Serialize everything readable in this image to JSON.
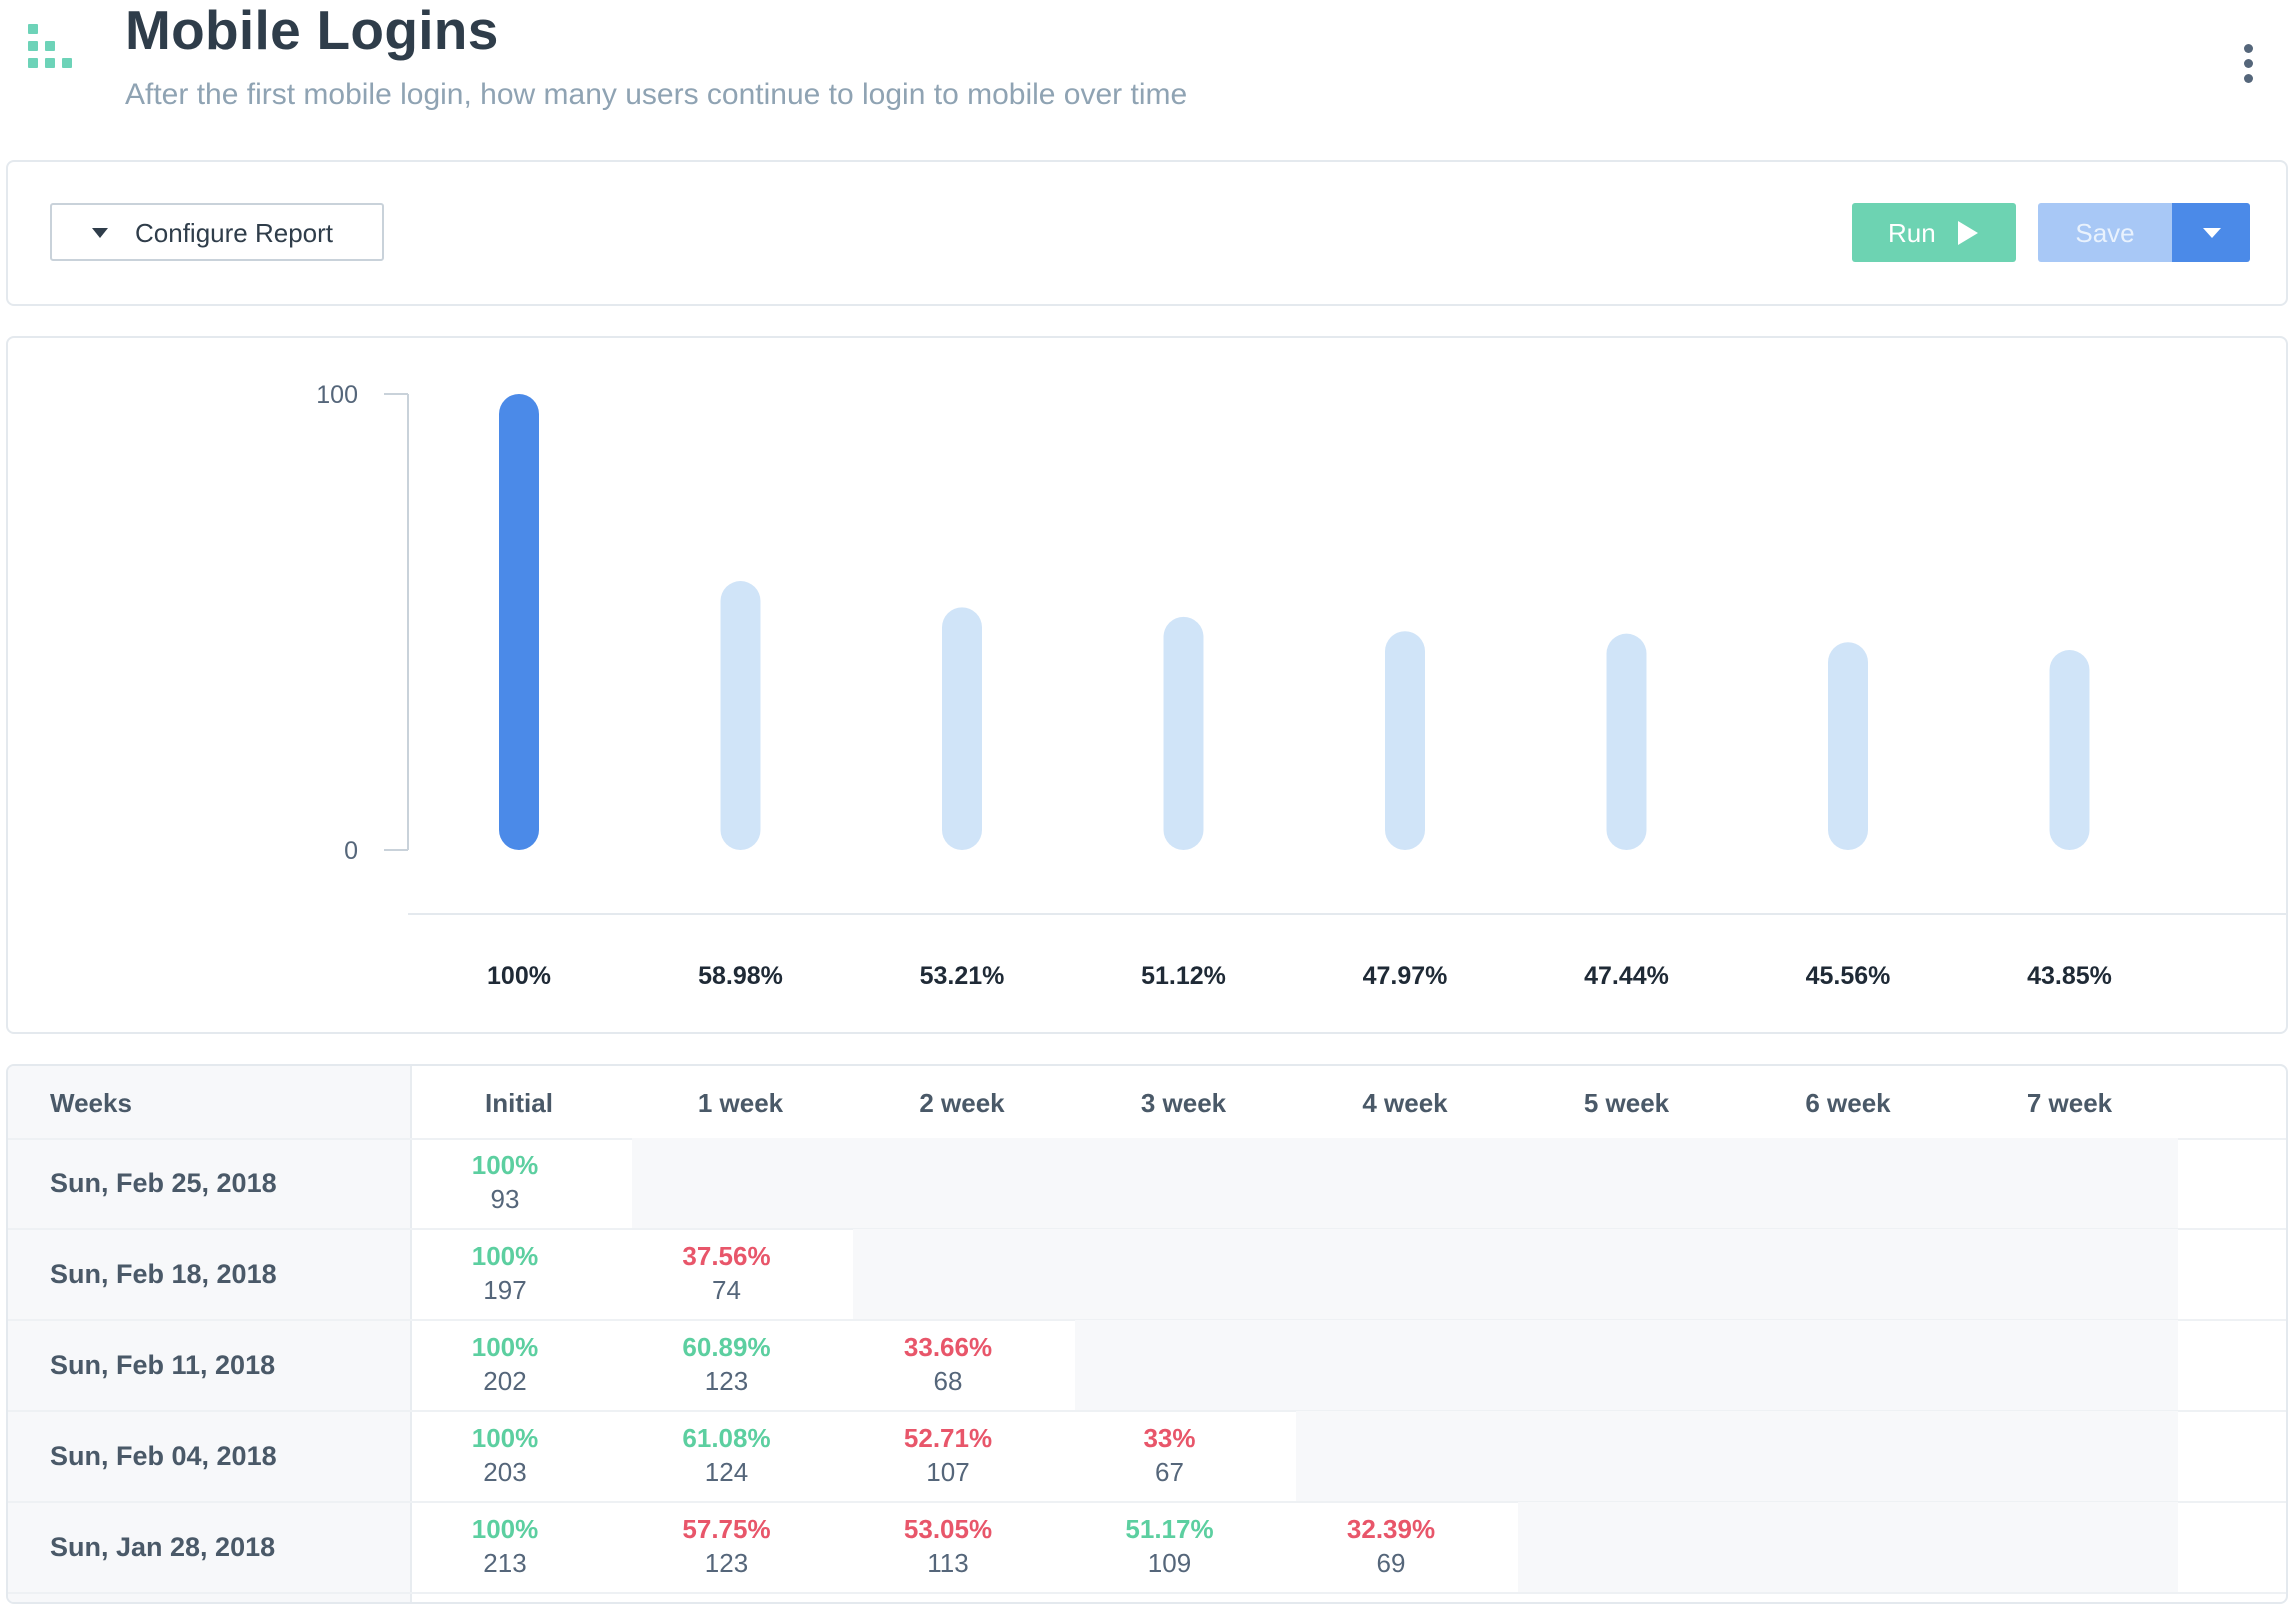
{
  "header": {
    "title": "Mobile Logins",
    "subtitle": "After the first mobile login, how many users continue to login to mobile over time"
  },
  "toolbar": {
    "configure_label": "Configure Report",
    "run_label": "Run",
    "save_label": "Save"
  },
  "colors": {
    "accent_green": "#6dd3b2",
    "primary_blue": "#4b8ae8",
    "bar_initial": "#4b8ae8",
    "bar_rest": "#d0e4f8",
    "positive": "#5ccfa0",
    "negative": "#e8566a"
  },
  "icons": {
    "logo": "dotted-grid-logo-icon",
    "menu": "kebab-menu-icon",
    "configure": "caret-down-icon",
    "run": "play-icon",
    "save_dropdown": "caret-down-icon"
  },
  "chart_data": {
    "type": "bar",
    "categories": [
      "Initial",
      "1 week",
      "2 week",
      "3 week",
      "4 week",
      "5 week",
      "6 week",
      "7 week"
    ],
    "values": [
      100,
      58.98,
      53.21,
      51.12,
      47.97,
      47.44,
      45.56,
      43.85
    ],
    "value_labels": [
      "100%",
      "58.98%",
      "53.21%",
      "51.12%",
      "47.97%",
      "47.44%",
      "45.56%",
      "43.85%"
    ],
    "ylim": [
      0,
      100
    ],
    "y_ticks": [
      "0",
      "100"
    ],
    "title": "",
    "xlabel": "",
    "ylabel": "",
    "grid": false
  },
  "table": {
    "weeks_header": "Weeks",
    "columns": [
      "Initial",
      "1 week",
      "2 week",
      "3 week",
      "4 week",
      "5 week",
      "6 week",
      "7 week"
    ],
    "rows": [
      {
        "label": "Sun, Feb 25, 2018",
        "cells": [
          {
            "pct": "100%",
            "count": "93",
            "tone": "green"
          }
        ]
      },
      {
        "label": "Sun, Feb 18, 2018",
        "cells": [
          {
            "pct": "100%",
            "count": "197",
            "tone": "green"
          },
          {
            "pct": "37.56%",
            "count": "74",
            "tone": "red"
          }
        ]
      },
      {
        "label": "Sun, Feb 11, 2018",
        "cells": [
          {
            "pct": "100%",
            "count": "202",
            "tone": "green"
          },
          {
            "pct": "60.89%",
            "count": "123",
            "tone": "green"
          },
          {
            "pct": "33.66%",
            "count": "68",
            "tone": "red"
          }
        ]
      },
      {
        "label": "Sun, Feb 04, 2018",
        "cells": [
          {
            "pct": "100%",
            "count": "203",
            "tone": "green"
          },
          {
            "pct": "61.08%",
            "count": "124",
            "tone": "green"
          },
          {
            "pct": "52.71%",
            "count": "107",
            "tone": "red"
          },
          {
            "pct": "33%",
            "count": "67",
            "tone": "red"
          }
        ]
      },
      {
        "label": "Sun, Jan 28, 2018",
        "cells": [
          {
            "pct": "100%",
            "count": "213",
            "tone": "green"
          },
          {
            "pct": "57.75%",
            "count": "123",
            "tone": "red"
          },
          {
            "pct": "53.05%",
            "count": "113",
            "tone": "red"
          },
          {
            "pct": "51.17%",
            "count": "109",
            "tone": "green"
          },
          {
            "pct": "32.39%",
            "count": "69",
            "tone": "red"
          }
        ]
      }
    ]
  }
}
